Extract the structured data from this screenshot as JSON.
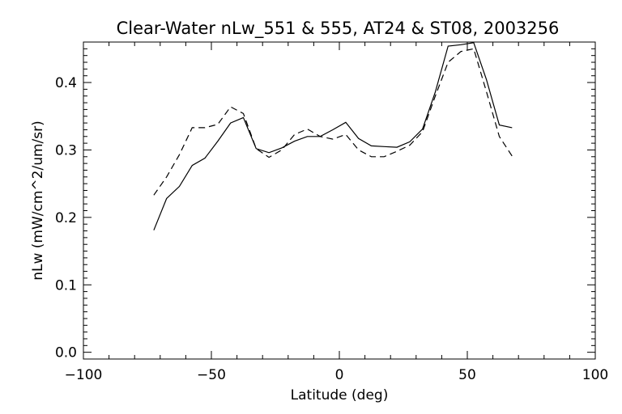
{
  "chart_data": {
    "type": "line",
    "title": "Clear-Water nLw_551 & 555, AT24 & ST08, 2003256",
    "xlabel": "Latitude (deg)",
    "ylabel": "nLw (mW/cm^2/um/sr)",
    "xlim": [
      -100,
      100
    ],
    "ylim": [
      -0.01,
      0.46
    ],
    "xticks": [
      -100,
      -50,
      0,
      50,
      100
    ],
    "xtick_labels": [
      "−100",
      "−50",
      "0",
      "50",
      "100"
    ],
    "yticks": [
      0.0,
      0.1,
      0.2,
      0.3,
      0.4
    ],
    "ytick_labels": [
      "0.0",
      "0.1",
      "0.2",
      "0.3",
      "0.4"
    ],
    "grid": false,
    "legend": "none",
    "series": [
      {
        "style": "solid",
        "color": "#000000",
        "x": [
          -72.5,
          -67.5,
          -62.5,
          -57.5,
          -52.5,
          -47.5,
          -42.5,
          -37.5,
          -32.5,
          -27.5,
          -22.5,
          -17.5,
          -12.5,
          -7.5,
          -2.5,
          2.5,
          7.5,
          12.5,
          17.5,
          22.5,
          27.5,
          32.5,
          37.5,
          42.5,
          47.5,
          52.5,
          57.5,
          62.5,
          67.5
        ],
        "y": [
          0.181,
          0.228,
          0.246,
          0.277,
          0.288,
          0.313,
          0.34,
          0.348,
          0.302,
          0.296,
          0.303,
          0.313,
          0.32,
          0.32,
          0.33,
          0.341,
          0.317,
          0.306,
          0.305,
          0.304,
          0.312,
          0.331,
          0.386,
          0.454,
          0.456,
          0.459,
          0.404,
          0.337,
          0.333
        ]
      },
      {
        "style": "dashed",
        "color": "#000000",
        "x": [
          -72.5,
          -67.5,
          -62.5,
          -57.5,
          -52.5,
          -47.5,
          -42.5,
          -37.5,
          -32.5,
          -27.5,
          -22.5,
          -17.5,
          -12.5,
          -7.5,
          -2.5,
          2.5,
          7.5,
          12.5,
          17.5,
          22.5,
          27.5,
          32.5,
          37.5,
          42.5,
          47.5,
          52.5,
          57.5,
          62.5,
          67.5
        ],
        "y": [
          0.233,
          0.26,
          0.293,
          0.333,
          0.333,
          0.338,
          0.364,
          0.354,
          0.302,
          0.289,
          0.3,
          0.323,
          0.331,
          0.32,
          0.316,
          0.323,
          0.3,
          0.29,
          0.29,
          0.298,
          0.307,
          0.327,
          0.38,
          0.43,
          0.446,
          0.45,
          0.386,
          0.32,
          0.291
        ]
      }
    ]
  }
}
